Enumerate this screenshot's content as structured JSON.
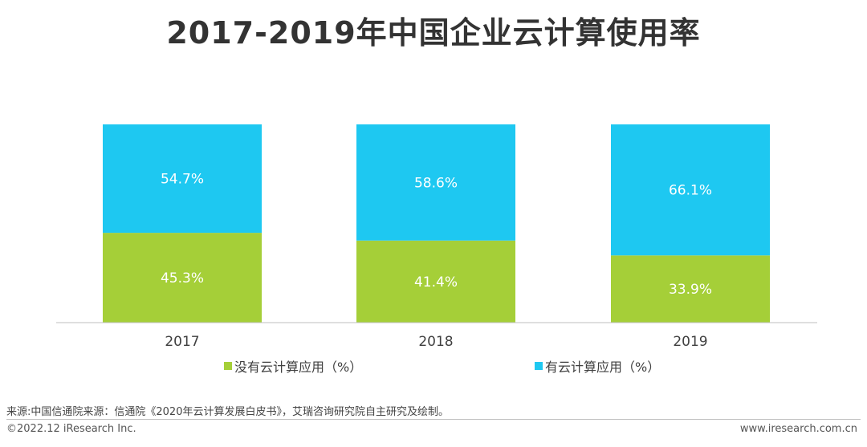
{
  "title": "2017-2019年中国企业云计算使用率",
  "chart_data": {
    "type": "bar",
    "stacked": true,
    "percent_stacked": true,
    "categories": [
      "2017",
      "2018",
      "2019"
    ],
    "series": [
      {
        "name": "没有云计算应用（%）",
        "values": [
          45.3,
          41.4,
          33.9
        ],
        "labels": [
          "45.3%",
          "41.4%",
          "33.9%"
        ],
        "color": "#a5cf38"
      },
      {
        "name": "有云计算应用（%）",
        "values": [
          54.7,
          58.6,
          66.1
        ],
        "labels": [
          "54.7%",
          "58.6%",
          "66.1%"
        ],
        "color": "#1ec8f1"
      }
    ],
    "ylim": [
      0,
      100
    ],
    "grid": false,
    "legend_position": "bottom"
  },
  "footer": {
    "source": "来源:中国信通院来源：信通院《2020年云计算发展白皮书》，艾瑞咨询研究院自主研究及绘制。",
    "copyright": "©2022.12 iResearch Inc.",
    "website": "www.iresearch.com.cn"
  }
}
